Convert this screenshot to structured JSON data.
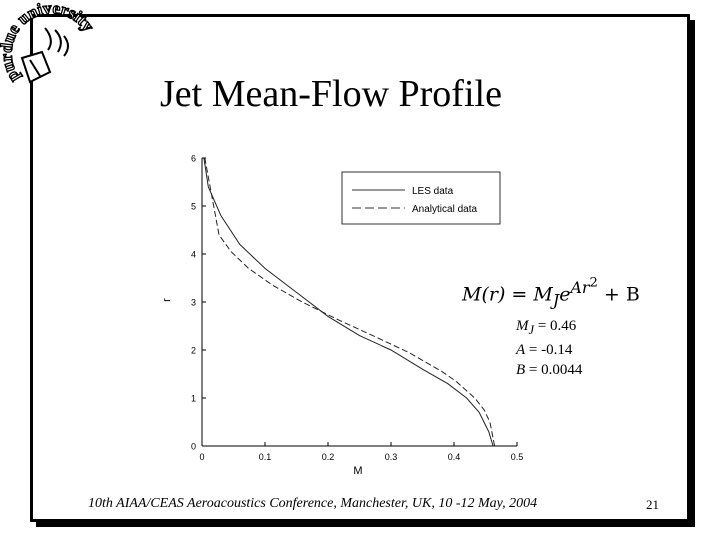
{
  "logo": {
    "text": "purdue university",
    "icon": "purdue-seal"
  },
  "slide": {
    "title": "Jet Mean-Flow Profile",
    "footer": "10th AIAA/CEAS Aeroacoustics Conference, Manchester, UK, 10 -12 May, 2004",
    "page_number": "21"
  },
  "formula": {
    "lhs": "M(r) = M",
    "lhs_sub": "J",
    "e": "e",
    "exp_a": "Ar",
    "exp_pow": "2",
    "plus": " + B"
  },
  "params": {
    "mj_label": "M",
    "mj_sub": "J",
    "mj_value": " = 0.46",
    "a_label": "A",
    "a_value": " = -0.14",
    "b_label": "B",
    "b_value": " = 0.0044"
  },
  "chart_data": {
    "type": "line",
    "xlabel": "M",
    "ylabel": "r",
    "xlim": [
      0,
      0.5
    ],
    "ylim": [
      0,
      6
    ],
    "xticks": [
      "0",
      "0.1",
      "0.2",
      "0.3",
      "0.4",
      "0.5"
    ],
    "yticks": [
      "0",
      "1",
      "2",
      "3",
      "4",
      "5",
      "6"
    ],
    "grid": false,
    "legend_position": "top-right",
    "series": [
      {
        "name": "LES data",
        "style": "solid",
        "x": [
          0.462,
          0.455,
          0.44,
          0.42,
          0.39,
          0.35,
          0.3,
          0.25,
          0.2,
          0.15,
          0.1,
          0.06,
          0.03,
          0.01,
          0.003
        ],
        "y": [
          0.0,
          0.3,
          0.7,
          1.0,
          1.3,
          1.6,
          2.0,
          2.3,
          2.7,
          3.2,
          3.7,
          4.2,
          4.8,
          5.4,
          6.0
        ]
      },
      {
        "name": "Analytical data",
        "style": "dashed",
        "x": [
          0.4644,
          0.457,
          0.448,
          0.433,
          0.403,
          0.381,
          0.328,
          0.271,
          0.213,
          0.159,
          0.112,
          0.074,
          0.046,
          0.027,
          0.0044
        ],
        "y": [
          0.0,
          0.5,
          0.75,
          1.0,
          1.35,
          1.55,
          1.95,
          2.3,
          2.65,
          3.0,
          3.35,
          3.7,
          4.05,
          4.4,
          6.0
        ]
      }
    ]
  }
}
